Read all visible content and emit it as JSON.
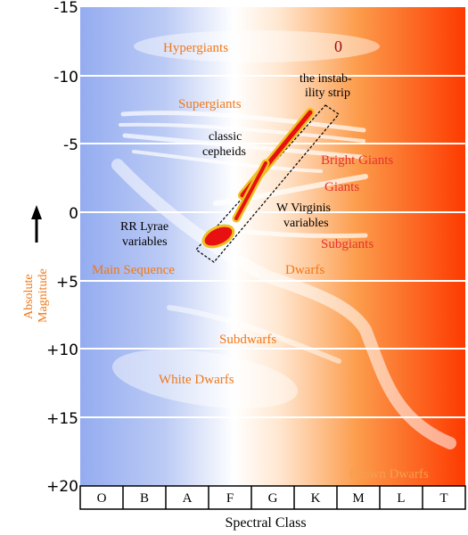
{
  "y_axis": {
    "label_line1": "Absolute",
    "label_line2": "Magnitude",
    "ticks": [
      "-15",
      "-10",
      "-5",
      "0",
      "+5",
      "+10",
      "+15",
      "+20"
    ]
  },
  "x_axis": {
    "label": "Spectral Class",
    "classes": [
      "O",
      "B",
      "A",
      "F",
      "G",
      "K",
      "M",
      "L",
      "T"
    ]
  },
  "regions": {
    "hypergiants": "Hypergiants",
    "supergiants": "Supergiants",
    "bright_giants": "Bright Giants",
    "giants": "Giants",
    "subgiants": "Subgiants",
    "main_sequence": "Main Sequence",
    "dwarfs": "Dwarfs",
    "subdwarfs": "Subdwarfs",
    "white_dwarfs": "White Dwarfs",
    "brown_dwarfs": "Brown Dwarfs"
  },
  "annotations": {
    "instability_line1": "the instab-",
    "instability_line2": "ility strip",
    "classic_cepheids_line1": "classic",
    "classic_cepheids_line2": "cepheids",
    "w_virginis_line1": "W Virginis",
    "w_virginis_line2": "variables",
    "rr_lyrae_line1": "RR Lyrae",
    "rr_lyrae_line2": "variables",
    "hypergiant_marker": "0"
  },
  "colors": {
    "cool_blue": "#9db4f2",
    "white": "#ffffff",
    "orange": "#fb9a48",
    "hot_red": "#fd3a00",
    "label_orange": "#f07818",
    "label_red": "#e83030",
    "strip_red": "#e81010",
    "strip_yellow": "#f0c020"
  }
}
